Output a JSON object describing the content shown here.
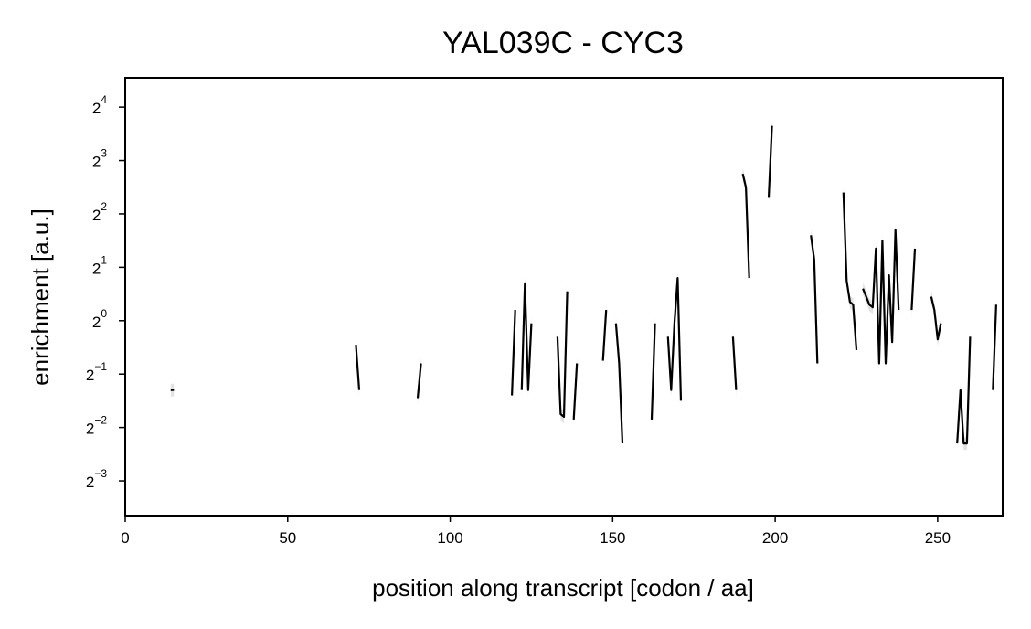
{
  "chart_data": {
    "type": "line",
    "title": "YAL039C - CYC3",
    "xlabel": "position along transcript [codon / aa]",
    "ylabel": "enrichment [a.u.]",
    "xlim": [
      0,
      270
    ],
    "ylim": [
      -3.65,
      4.55
    ],
    "y_scale": "log2",
    "x_ticks": [
      0,
      50,
      100,
      150,
      200,
      250
    ],
    "y_ticks": [
      {
        "base": "2",
        "exp": "−3",
        "value": -3
      },
      {
        "base": "2",
        "exp": "−2",
        "value": -2
      },
      {
        "base": "2",
        "exp": "−1",
        "value": -1
      },
      {
        "base": "2",
        "exp": "0",
        "value": 0
      },
      {
        "base": "2",
        "exp": "1",
        "value": 1
      },
      {
        "base": "2",
        "exp": "2",
        "value": 2
      },
      {
        "base": "2",
        "exp": "3",
        "value": 3
      },
      {
        "base": "2",
        "exp": "4",
        "value": 4
      }
    ],
    "grid": false,
    "colors": {
      "line": "#000000",
      "band": "#b0b0b0"
    },
    "series": [
      {
        "values": [
          [
            14,
            -1.3
          ],
          [
            15,
            -1.3
          ]
        ]
      },
      {
        "values": [
          [
            71,
            -0.45
          ],
          [
            72,
            -1.3
          ]
        ]
      },
      {
        "values": [
          [
            90,
            -1.45
          ],
          [
            91,
            -0.8
          ]
        ]
      },
      {
        "values": [
          [
            119,
            -1.4
          ],
          [
            120,
            0.2
          ]
        ]
      },
      {
        "values": [
          [
            122,
            -1.3
          ],
          [
            123,
            0.7
          ],
          [
            124,
            -1.3
          ],
          [
            125,
            -0.05
          ]
        ]
      },
      {
        "values": [
          [
            133,
            -0.3
          ],
          [
            134,
            -1.75
          ],
          [
            135,
            -1.8
          ],
          [
            136,
            0.55
          ]
        ]
      },
      {
        "values": [
          [
            138,
            -1.85
          ],
          [
            139,
            -0.8
          ]
        ]
      },
      {
        "values": [
          [
            147,
            -0.75
          ],
          [
            148,
            0.2
          ]
        ]
      },
      {
        "values": [
          [
            151,
            -0.05
          ],
          [
            152,
            -0.8
          ],
          [
            153,
            -2.3
          ]
        ]
      },
      {
        "values": [
          [
            162,
            -1.85
          ],
          [
            163,
            -0.05
          ]
        ]
      },
      {
        "values": [
          [
            167,
            -0.3
          ],
          [
            168,
            -1.3
          ],
          [
            169,
            -0.05
          ],
          [
            170,
            0.8
          ],
          [
            171,
            -1.5
          ]
        ]
      },
      {
        "values": [
          [
            187,
            -0.3
          ],
          [
            188,
            -1.3
          ]
        ]
      },
      {
        "values": [
          [
            190,
            2.75
          ],
          [
            191,
            2.5
          ],
          [
            192,
            0.8
          ]
        ]
      },
      {
        "values": [
          [
            198,
            2.3
          ],
          [
            199,
            3.65
          ]
        ]
      },
      {
        "values": [
          [
            211,
            1.6
          ],
          [
            212,
            1.15
          ],
          [
            213,
            -0.8
          ]
        ]
      },
      {
        "values": [
          [
            221,
            2.4
          ],
          [
            222,
            0.75
          ],
          [
            223,
            0.35
          ],
          [
            224,
            0.3
          ],
          [
            225,
            -0.55
          ]
        ]
      },
      {
        "values": [
          [
            227,
            0.6
          ],
          [
            228,
            0.45
          ],
          [
            229,
            0.3
          ],
          [
            230,
            0.25
          ],
          [
            231,
            1.35
          ],
          [
            232,
            -0.8
          ],
          [
            233,
            1.5
          ],
          [
            234,
            -0.8
          ],
          [
            235,
            0.85
          ],
          [
            236,
            -0.4
          ],
          [
            237,
            1.7
          ],
          [
            238,
            0.2
          ]
        ]
      },
      {
        "values": [
          [
            242,
            0.2
          ],
          [
            243,
            1.35
          ]
        ]
      },
      {
        "values": [
          [
            248,
            0.45
          ],
          [
            249,
            0.2
          ],
          [
            250,
            -0.35
          ],
          [
            251,
            -0.05
          ]
        ]
      },
      {
        "values": [
          [
            256,
            -2.3
          ],
          [
            257,
            -1.3
          ],
          [
            258,
            -2.3
          ],
          [
            259,
            -2.3
          ],
          [
            260,
            -0.3
          ]
        ]
      },
      {
        "values": [
          [
            267,
            -1.3
          ],
          [
            268,
            0.3
          ]
        ]
      }
    ]
  }
}
